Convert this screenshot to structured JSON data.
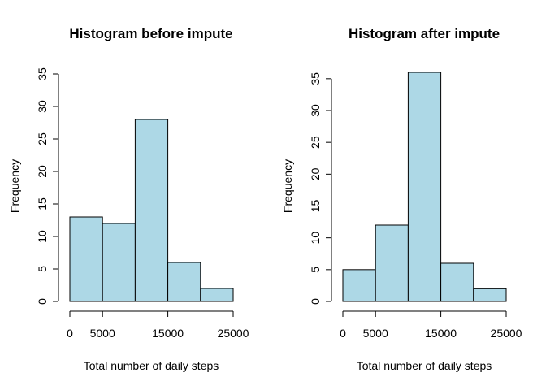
{
  "chart_data": [
    {
      "type": "bar",
      "title": "Histogram before impute",
      "xlabel": "Total number of daily steps",
      "ylabel": "Frequency",
      "bar_color": "#ADD8E6",
      "bins": [
        [
          0,
          5000
        ],
        [
          5000,
          10000
        ],
        [
          10000,
          15000
        ],
        [
          15000,
          20000
        ],
        [
          20000,
          25000
        ]
      ],
      "values": [
        13,
        12,
        28,
        6,
        2
      ],
      "xlim": [
        0,
        25000
      ],
      "ylim": [
        0,
        35
      ],
      "x_ticks": [
        0,
        5000,
        15000,
        25000
      ],
      "x_tick_labels": [
        "0",
        "5000",
        "15000",
        "25000"
      ],
      "x_axis_range": [
        0,
        25000
      ],
      "y_ticks": [
        0,
        5,
        10,
        15,
        20,
        25,
        30,
        35
      ],
      "y_tick_labels": [
        "0",
        "5",
        "10",
        "15",
        "20",
        "25",
        "30",
        "35"
      ],
      "grid": false
    },
    {
      "type": "bar",
      "title": "Histogram after impute",
      "xlabel": "Total number of daily steps",
      "ylabel": "Frequency",
      "bar_color": "#ADD8E6",
      "bins": [
        [
          0,
          5000
        ],
        [
          5000,
          10000
        ],
        [
          10000,
          15000
        ],
        [
          15000,
          20000
        ],
        [
          20000,
          25000
        ]
      ],
      "values": [
        5,
        12,
        36,
        6,
        2
      ],
      "xlim": [
        0,
        25000
      ],
      "ylim": [
        0,
        36
      ],
      "x_ticks": [
        0,
        5000,
        15000,
        25000
      ],
      "x_tick_labels": [
        "0",
        "5000",
        "15000",
        "25000"
      ],
      "x_axis_range": [
        0,
        25000
      ],
      "y_ticks": [
        0,
        5,
        10,
        15,
        20,
        25,
        30,
        35
      ],
      "y_tick_labels": [
        "0",
        "5",
        "10",
        "15",
        "20",
        "25",
        "30",
        "35"
      ],
      "grid": false
    }
  ]
}
